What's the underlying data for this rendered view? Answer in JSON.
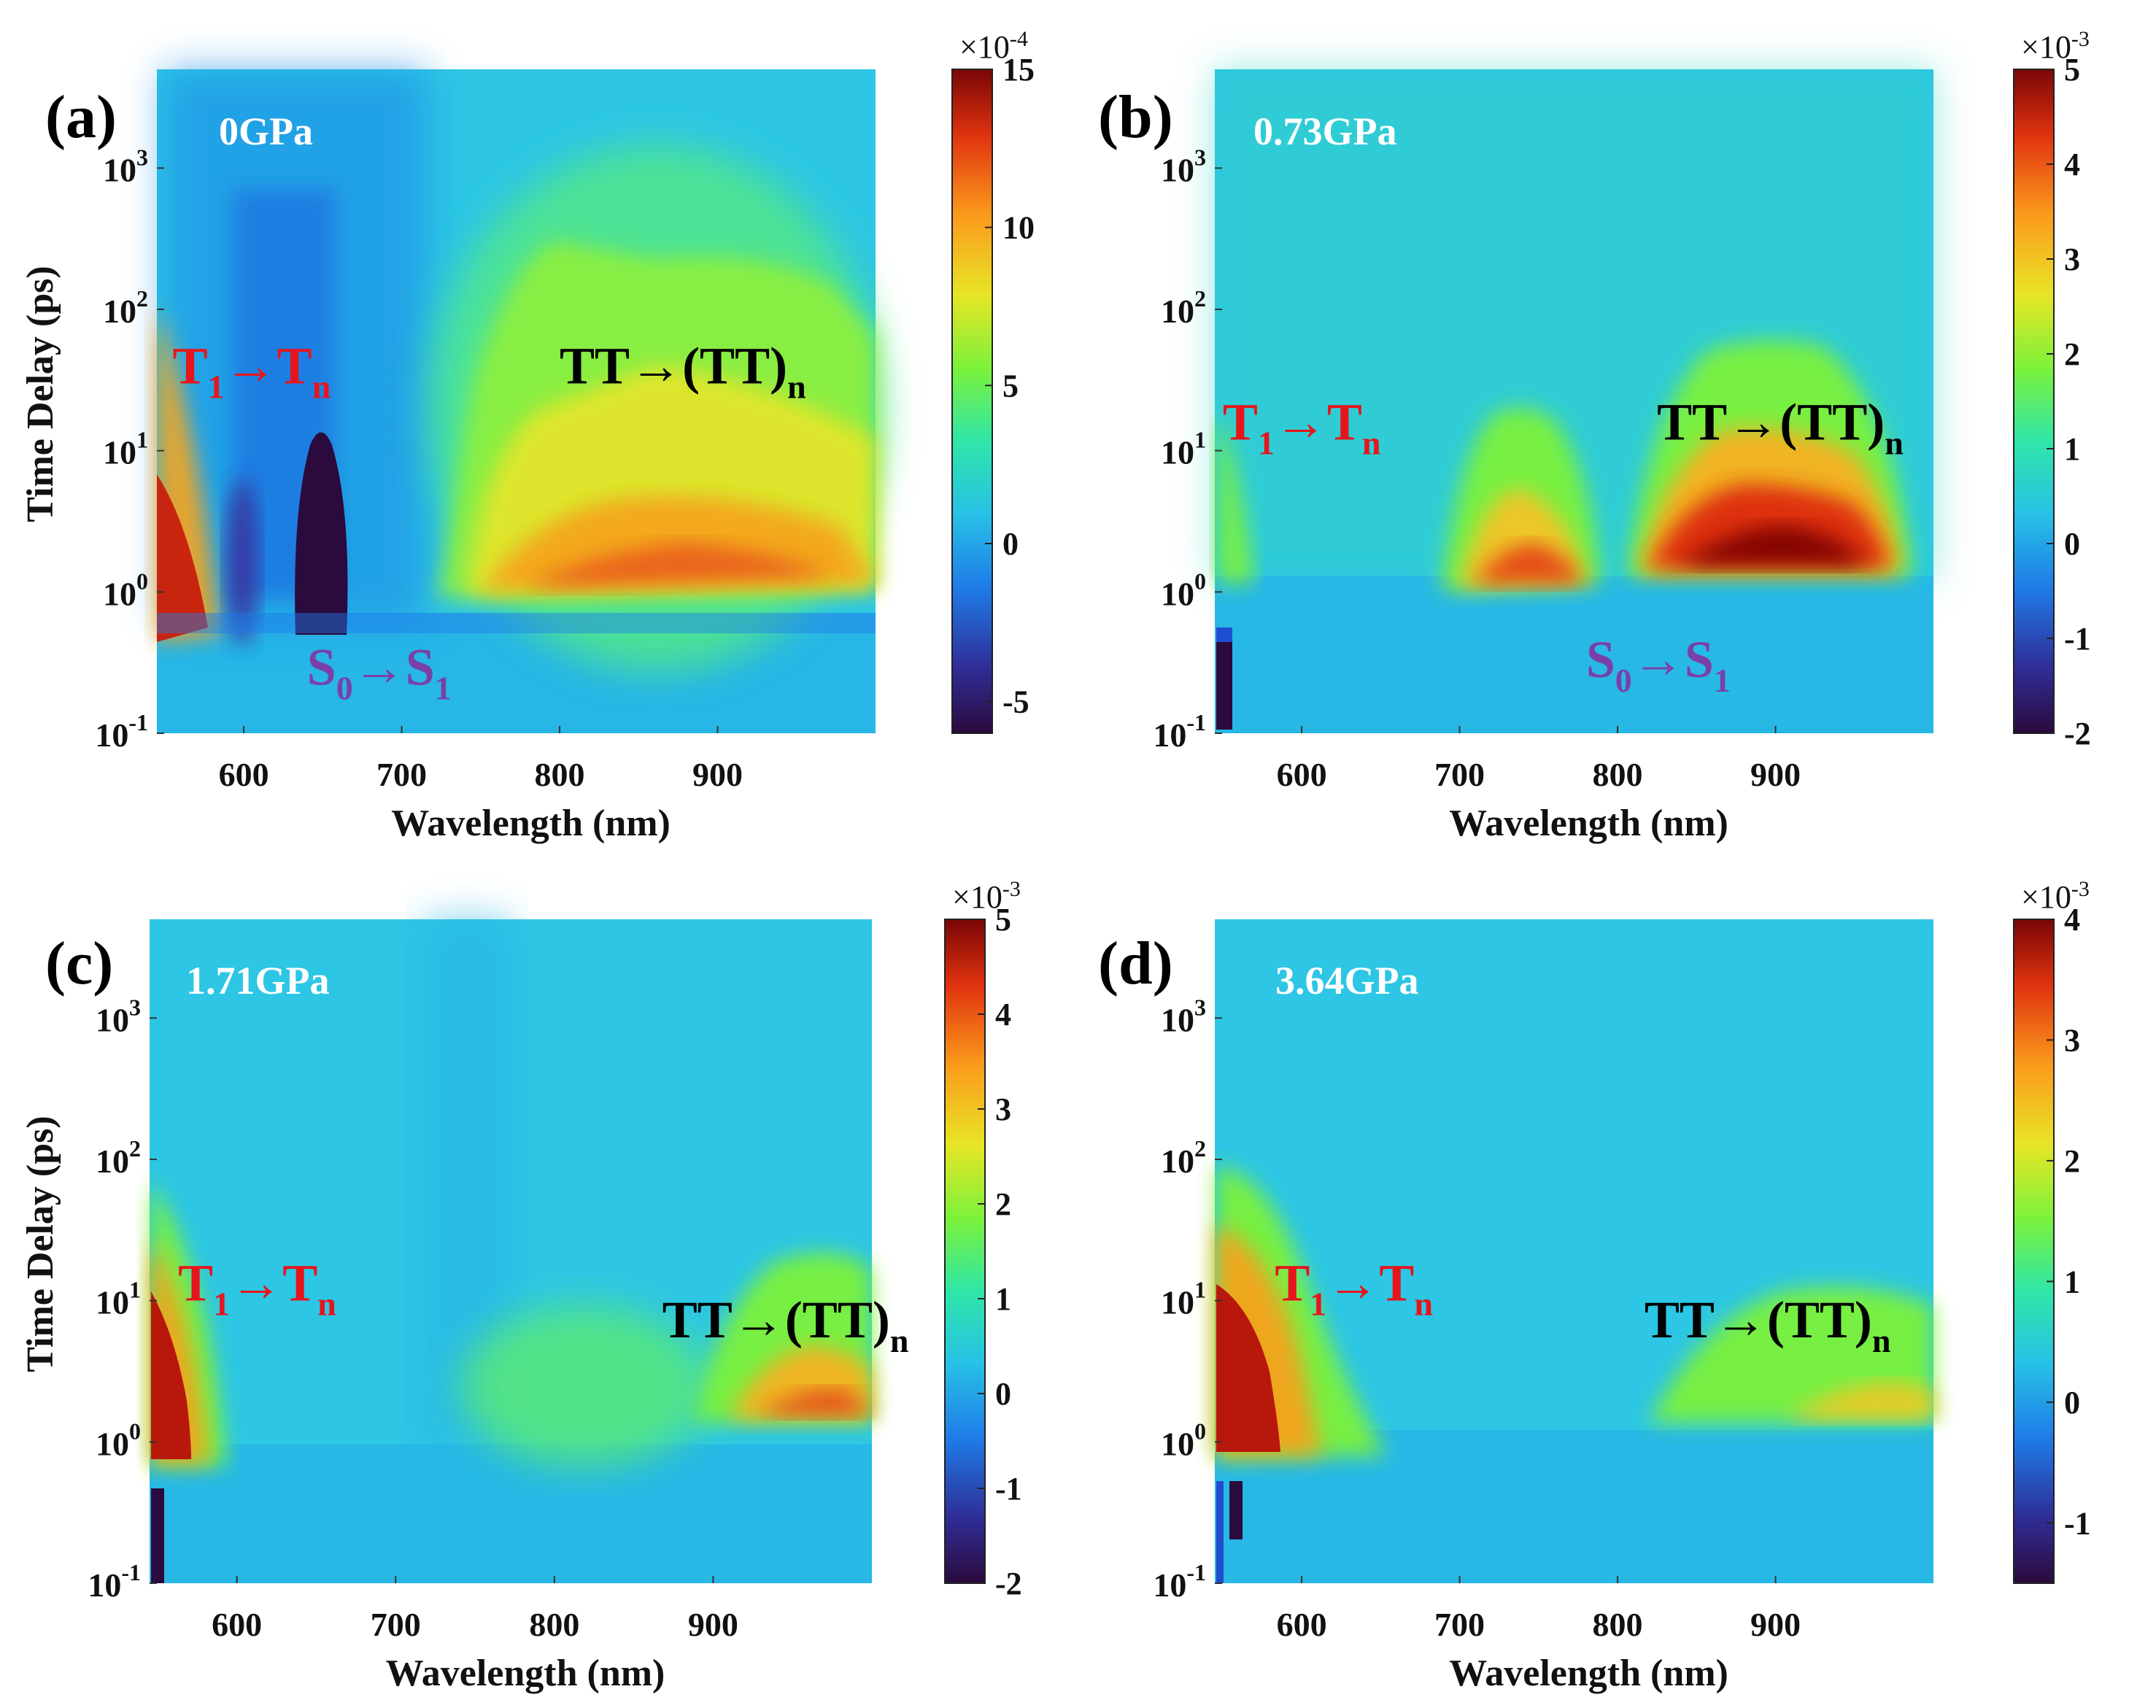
{
  "figure": {
    "x_axis_label": "Wavelength (nm)",
    "y_axis_label": "Time Delay (ps)"
  },
  "colors": {
    "t1_annotation": "#e8141c",
    "tt_annotation": "#000000",
    "s0_annotation": "#7b3fa8",
    "pressure_label": "#ffffff"
  },
  "chart_data": [
    {
      "type": "heatmap",
      "panel": "(a)",
      "pressure": "0GPa",
      "x_ticks": [
        600,
        700,
        800,
        900
      ],
      "x_range": [
        545,
        1000
      ],
      "y_scale": "log",
      "y_ticks": [
        {
          "value": 0.1,
          "base": "10",
          "exp": "-1"
        },
        {
          "value": 1,
          "base": "10",
          "exp": "0"
        },
        {
          "value": 10,
          "base": "10",
          "exp": "1"
        },
        {
          "value": 100,
          "base": "10",
          "exp": "2"
        },
        {
          "value": 1000,
          "base": "10",
          "exp": "3"
        }
      ],
      "y_range": [
        0.1,
        5000
      ],
      "colorbar": {
        "scale_base": "×10",
        "scale_exp": "-4",
        "ticks": [
          {
            "value": 15,
            "label": "15"
          },
          {
            "value": 10,
            "label": "10"
          },
          {
            "value": 5,
            "label": "5"
          },
          {
            "value": 0,
            "label": "0"
          },
          {
            "value": -5,
            "label": "-5"
          }
        ],
        "range": [
          -6,
          15
        ]
      },
      "annotations": [
        {
          "kind": "t1",
          "wl": 555,
          "t": 30,
          "main1": "T",
          "sub1": "1",
          "arrow": "→",
          "main2": "T",
          "sub2": "n"
        },
        {
          "kind": "tt",
          "wl": 800,
          "t": 30,
          "main1": "TT→(TT)",
          "sub1": "n"
        },
        {
          "kind": "s0",
          "wl": 640,
          "t": 0.22,
          "main1": "S",
          "sub1": "0",
          "arrow": "→",
          "main2": "S",
          "sub2": "1"
        }
      ]
    },
    {
      "type": "heatmap",
      "panel": "(b)",
      "pressure": "0.73GPa",
      "x_ticks": [
        600,
        700,
        800,
        900
      ],
      "x_range": [
        545,
        1000
      ],
      "y_scale": "log",
      "y_ticks": [
        {
          "value": 0.1,
          "base": "10",
          "exp": "-1"
        },
        {
          "value": 1,
          "base": "10",
          "exp": "0"
        },
        {
          "value": 10,
          "base": "10",
          "exp": "1"
        },
        {
          "value": 100,
          "base": "10",
          "exp": "2"
        },
        {
          "value": 1000,
          "base": "10",
          "exp": "3"
        }
      ],
      "y_range": [
        0.1,
        5000
      ],
      "colorbar": {
        "scale_base": "×10",
        "scale_exp": "-3",
        "ticks": [
          {
            "value": 5,
            "label": "5"
          },
          {
            "value": 4,
            "label": "4"
          },
          {
            "value": 3,
            "label": "3"
          },
          {
            "value": 2,
            "label": "2"
          },
          {
            "value": 1,
            "label": "1"
          },
          {
            "value": 0,
            "label": "0"
          },
          {
            "value": -1,
            "label": "-1"
          },
          {
            "value": -2,
            "label": "-2"
          }
        ],
        "range": [
          -2,
          5
        ]
      },
      "annotations": [
        {
          "kind": "t1",
          "wl": 550,
          "t": 12,
          "main1": "T",
          "sub1": "1",
          "arrow": "→",
          "main2": "T",
          "sub2": "n"
        },
        {
          "kind": "tt",
          "wl": 825,
          "t": 12,
          "main1": "TT→(TT)",
          "sub1": "n"
        },
        {
          "kind": "s0",
          "wl": 780,
          "t": 0.25,
          "main1": "S",
          "sub1": "0",
          "arrow": "→",
          "main2": "S",
          "sub2": "1"
        }
      ]
    },
    {
      "type": "heatmap",
      "panel": "(c)",
      "pressure": "1.71GPa",
      "x_ticks": [
        600,
        700,
        800,
        900
      ],
      "x_range": [
        545,
        1000
      ],
      "y_scale": "log",
      "y_ticks": [
        {
          "value": 0.1,
          "base": "10",
          "exp": "-1"
        },
        {
          "value": 1,
          "base": "10",
          "exp": "0"
        },
        {
          "value": 10,
          "base": "10",
          "exp": "1"
        },
        {
          "value": 100,
          "base": "10",
          "exp": "2"
        },
        {
          "value": 1000,
          "base": "10",
          "exp": "3"
        }
      ],
      "y_range": [
        0.1,
        5000
      ],
      "colorbar": {
        "scale_base": "×10",
        "scale_exp": "-3",
        "ticks": [
          {
            "value": 5,
            "label": "5"
          },
          {
            "value": 4,
            "label": "4"
          },
          {
            "value": 3,
            "label": "3"
          },
          {
            "value": 2,
            "label": "2"
          },
          {
            "value": 1,
            "label": "1"
          },
          {
            "value": 0,
            "label": "0"
          },
          {
            "value": -1,
            "label": "-1"
          },
          {
            "value": -2,
            "label": "-2"
          }
        ],
        "range": [
          -2,
          5
        ]
      },
      "annotations": [
        {
          "kind": "t1",
          "wl": 563,
          "t": 10,
          "main1": "T",
          "sub1": "1",
          "arrow": "→",
          "main2": "T",
          "sub2": "n"
        },
        {
          "kind": "tt",
          "wl": 868,
          "t": 5.5,
          "main1": "TT→(TT)",
          "sub1": "n"
        }
      ]
    },
    {
      "type": "heatmap",
      "panel": "(d)",
      "pressure": "3.64GPa",
      "x_ticks": [
        600,
        700,
        800,
        900
      ],
      "x_range": [
        545,
        1000
      ],
      "y_scale": "log",
      "y_ticks": [
        {
          "value": 0.1,
          "base": "10",
          "exp": "-1"
        },
        {
          "value": 1,
          "base": "10",
          "exp": "0"
        },
        {
          "value": 10,
          "base": "10",
          "exp": "1"
        },
        {
          "value": 100,
          "base": "10",
          "exp": "2"
        },
        {
          "value": 1000,
          "base": "10",
          "exp": "3"
        }
      ],
      "y_range": [
        0.1,
        5000
      ],
      "colorbar": {
        "scale_base": "×10",
        "scale_exp": "-3",
        "ticks": [
          {
            "value": 4,
            "label": "4"
          },
          {
            "value": 3,
            "label": "3"
          },
          {
            "value": 2,
            "label": "2"
          },
          {
            "value": 1,
            "label": "1"
          },
          {
            "value": 0,
            "label": "0"
          },
          {
            "value": -1,
            "label": "-1"
          }
        ],
        "range": [
          -1.5,
          4
        ]
      },
      "annotations": [
        {
          "kind": "t1",
          "wl": 583,
          "t": 10,
          "main1": "T",
          "sub1": "1",
          "arrow": "→",
          "main2": "T",
          "sub2": "n"
        },
        {
          "kind": "tt",
          "wl": 817,
          "t": 5.5,
          "main1": "TT→(TT)",
          "sub1": "n"
        }
      ]
    }
  ]
}
